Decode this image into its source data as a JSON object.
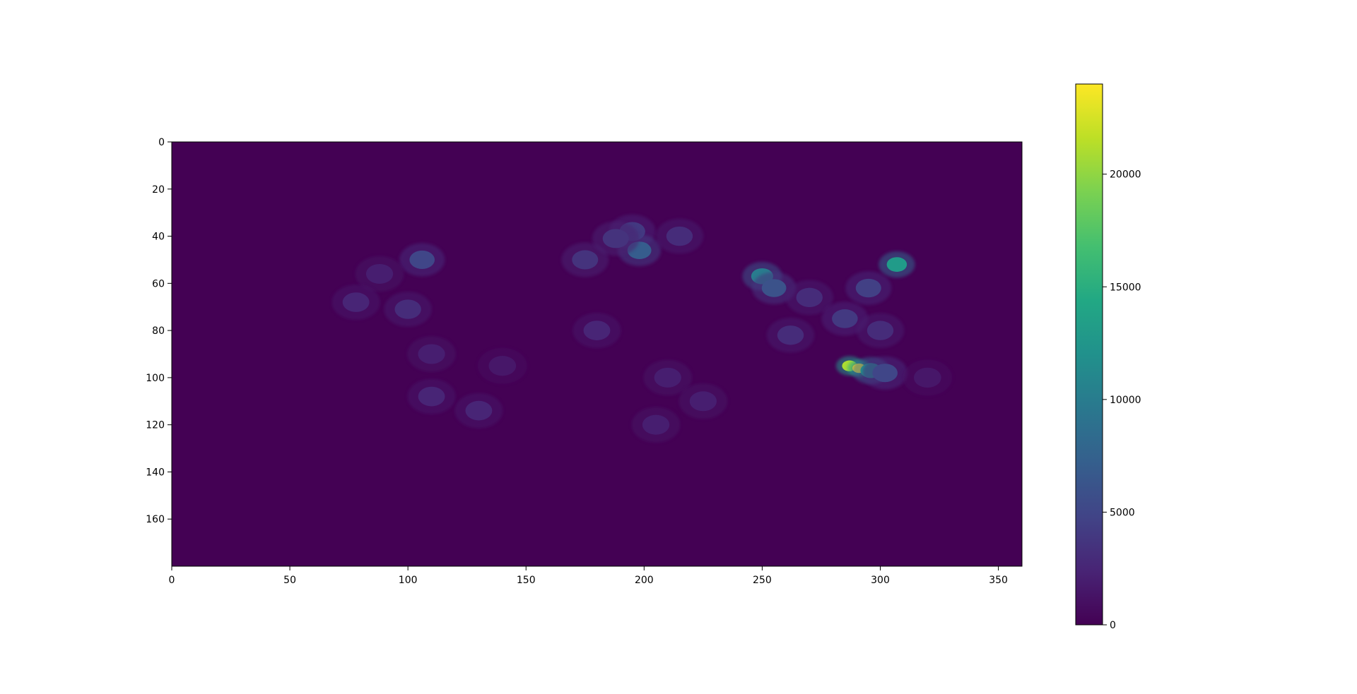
{
  "chart_data": {
    "type": "heatmap",
    "title": "",
    "xlabel": "",
    "ylabel": "",
    "xlim": [
      0,
      360
    ],
    "ylim": [
      0,
      180
    ],
    "y_inverted": true,
    "x_ticks": [
      0,
      50,
      100,
      150,
      200,
      250,
      300,
      350
    ],
    "y_ticks": [
      0,
      20,
      40,
      60,
      80,
      100,
      120,
      140,
      160
    ],
    "colormap": "viridis",
    "background_color": "#440154",
    "grid": false,
    "colorbar": {
      "placement": "right",
      "min": 0,
      "max": 24000,
      "ticks": [
        0,
        5000,
        10000,
        15000,
        20000
      ]
    },
    "hotspots": [
      {
        "x": 106,
        "y": 50,
        "value": 5000
      },
      {
        "x": 88,
        "y": 56,
        "value": 2000
      },
      {
        "x": 78,
        "y": 68,
        "value": 2500
      },
      {
        "x": 100,
        "y": 71,
        "value": 3000
      },
      {
        "x": 110,
        "y": 90,
        "value": 2000
      },
      {
        "x": 110,
        "y": 108,
        "value": 2500
      },
      {
        "x": 130,
        "y": 114,
        "value": 2500
      },
      {
        "x": 195,
        "y": 38,
        "value": 4000
      },
      {
        "x": 198,
        "y": 46,
        "value": 7000
      },
      {
        "x": 175,
        "y": 50,
        "value": 3500
      },
      {
        "x": 188,
        "y": 41,
        "value": 3500
      },
      {
        "x": 215,
        "y": 40,
        "value": 3000
      },
      {
        "x": 250,
        "y": 57,
        "value": 10000
      },
      {
        "x": 255,
        "y": 62,
        "value": 6000
      },
      {
        "x": 262,
        "y": 82,
        "value": 3000
      },
      {
        "x": 270,
        "y": 66,
        "value": 3000
      },
      {
        "x": 307,
        "y": 52,
        "value": 13000
      },
      {
        "x": 295,
        "y": 62,
        "value": 4500
      },
      {
        "x": 285,
        "y": 75,
        "value": 4000
      },
      {
        "x": 300,
        "y": 80,
        "value": 3000
      },
      {
        "x": 287,
        "y": 95,
        "value": 21000
      },
      {
        "x": 291,
        "y": 96,
        "value": 24000
      },
      {
        "x": 296,
        "y": 97,
        "value": 12000
      },
      {
        "x": 302,
        "y": 98,
        "value": 5000
      },
      {
        "x": 180,
        "y": 80,
        "value": 2500
      },
      {
        "x": 210,
        "y": 100,
        "value": 2000
      },
      {
        "x": 205,
        "y": 120,
        "value": 2000
      },
      {
        "x": 225,
        "y": 110,
        "value": 2000
      },
      {
        "x": 140,
        "y": 95,
        "value": 1500
      },
      {
        "x": 320,
        "y": 100,
        "value": 1500
      }
    ]
  }
}
